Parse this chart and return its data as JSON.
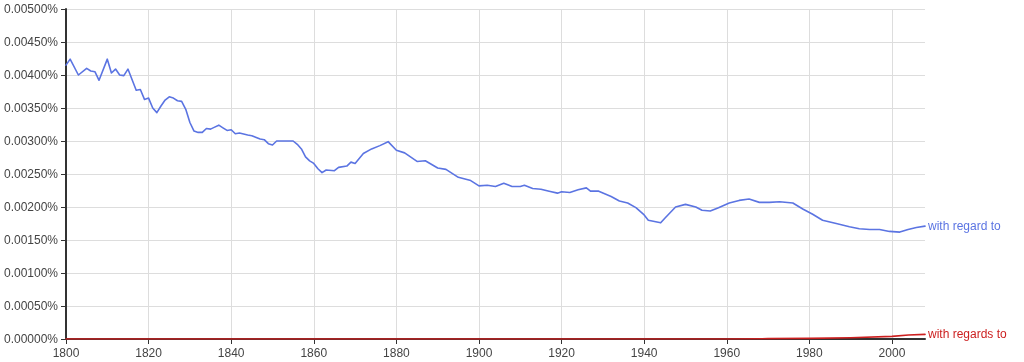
{
  "chart_data": {
    "type": "line",
    "xlim": [
      1800,
      2008
    ],
    "xticks": [
      1800,
      1820,
      1840,
      1860,
      1880,
      1900,
      1920,
      1940,
      1960,
      1980,
      2000
    ],
    "ylim": [
      0,
      0.005
    ],
    "yticks": [
      {
        "value": 0,
        "label": "0.00000%"
      },
      {
        "value": 0.0005,
        "label": "0.00050%"
      },
      {
        "value": 0.001,
        "label": "0.00100%"
      },
      {
        "value": 0.0015,
        "label": "0.00150%"
      },
      {
        "value": 0.002,
        "label": "0.00200%"
      },
      {
        "value": 0.0025,
        "label": "0.00250%"
      },
      {
        "value": 0.003,
        "label": "0.00300%"
      },
      {
        "value": 0.0035,
        "label": "0.00350%"
      },
      {
        "value": 0.004,
        "label": "0.00400%"
      },
      {
        "value": 0.0045,
        "label": "0.00450%"
      },
      {
        "value": 0.005,
        "label": "0.00500%"
      }
    ],
    "grid": true,
    "legend": false,
    "marker": "none",
    "line_style": "solid",
    "series": [
      {
        "name": "with regard to",
        "color": "#5b74e2",
        "x": [
          1800,
          1801,
          1803,
          1805,
          1806,
          1807,
          1808,
          1810,
          1811,
          1812,
          1813,
          1814,
          1815,
          1817,
          1818,
          1819,
          1820,
          1821,
          1822,
          1823,
          1824,
          1825,
          1826,
          1827,
          1828,
          1829,
          1830,
          1831,
          1832,
          1833,
          1834,
          1835,
          1836,
          1837,
          1838,
          1839,
          1840,
          1841,
          1842,
          1844,
          1845,
          1847,
          1848,
          1849,
          1850,
          1851,
          1853,
          1855,
          1856,
          1857,
          1858,
          1859,
          1860,
          1861,
          1862,
          1863,
          1865,
          1866,
          1868,
          1869,
          1870,
          1872,
          1874,
          1876,
          1878,
          1880,
          1882,
          1885,
          1887,
          1890,
          1892,
          1895,
          1898,
          1900,
          1902,
          1904,
          1906,
          1908,
          1910,
          1911,
          1913,
          1915,
          1917,
          1919,
          1920,
          1922,
          1924,
          1926,
          1927,
          1929,
          1932,
          1934,
          1936,
          1938,
          1940,
          1941,
          1944,
          1945,
          1947.6,
          1950,
          1952.5,
          1954,
          1956,
          1958,
          1960.6,
          1963,
          1965.4,
          1967.9,
          1970.3,
          1972.8,
          1976,
          1978.4,
          1980.8,
          1983.2,
          1986.5,
          1989.7,
          1992.1,
          1994.6,
          1997,
          1999.4,
          2001.9,
          2003.9,
          2005.9,
          2008
        ],
        "values": [
          0.00415,
          0.00424,
          0.004,
          0.0041,
          0.00406,
          0.00405,
          0.00392,
          0.00424,
          0.00403,
          0.00409,
          0.004,
          0.00399,
          0.00409,
          0.00377,
          0.00378,
          0.00363,
          0.00365,
          0.0035,
          0.00343,
          0.00353,
          0.00362,
          0.00367,
          0.00365,
          0.00361,
          0.0036,
          0.00348,
          0.00328,
          0.00315,
          0.00313,
          0.00313,
          0.00319,
          0.00318,
          0.00321,
          0.00324,
          0.0032,
          0.00316,
          0.00317,
          0.00311,
          0.00312,
          0.00309,
          0.00308,
          0.00303,
          0.00302,
          0.00296,
          0.00294,
          0.003,
          0.003,
          0.003,
          0.00295,
          0.00288,
          0.00276,
          0.0027,
          0.00266,
          0.00258,
          0.00252,
          0.00256,
          0.00255,
          0.0026,
          0.00262,
          0.00268,
          0.00266,
          0.00281,
          0.00288,
          0.00293,
          0.00299,
          0.00286,
          0.00282,
          0.00269,
          0.0027,
          0.00259,
          0.00257,
          0.00245,
          0.0024,
          0.00232,
          0.00233,
          0.00231,
          0.00236,
          0.00231,
          0.00231,
          0.00233,
          0.00228,
          0.00227,
          0.00224,
          0.00221,
          0.00223,
          0.00222,
          0.00226,
          0.00229,
          0.00224,
          0.00224,
          0.00216,
          0.00209,
          0.00206,
          0.00199,
          0.00188,
          0.0018,
          0.00176,
          0.00183,
          0.002,
          0.00204,
          0.002,
          0.00195,
          0.00194,
          0.00199,
          0.00206,
          0.0021,
          0.00212,
          0.00207,
          0.00207,
          0.00208,
          0.00206,
          0.00197,
          0.00189,
          0.0018,
          0.00175,
          0.0017,
          0.00167,
          0.00166,
          0.00166,
          0.00163,
          0.00162,
          0.00166,
          0.00169,
          0.00171
        ]
      },
      {
        "name": "with regards to",
        "color": "#cc1f1f",
        "x": [
          1800,
          1900,
          1960,
          1970,
          1980,
          1990,
          2000,
          2004,
          2008
        ],
        "values": [
          0,
          0,
          0,
          5e-06,
          1e-05,
          2e-05,
          4e-05,
          6e-05,
          7e-05
        ]
      }
    ]
  }
}
